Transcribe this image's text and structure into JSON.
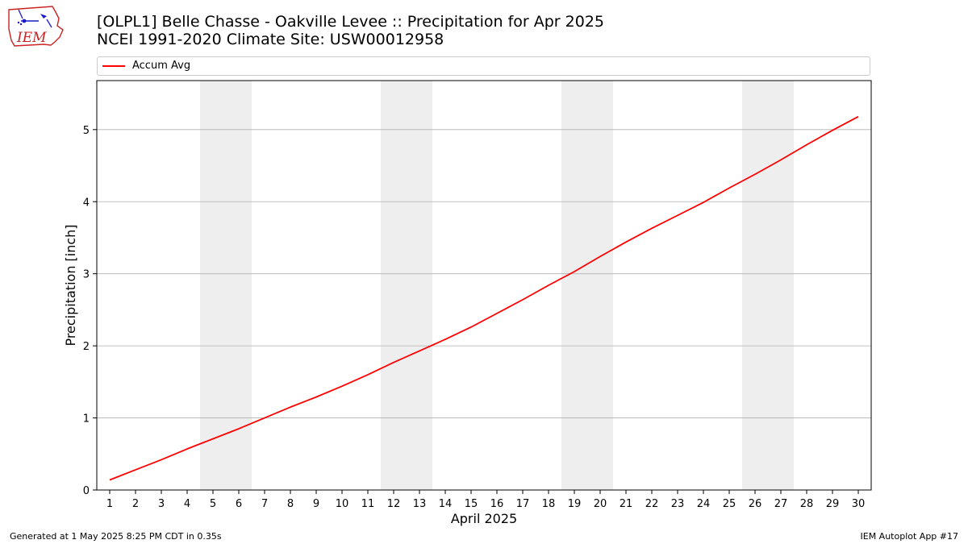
{
  "header": {
    "logo_text": "IEM",
    "title_line1": "[OLPL1] Belle Chasse - Oakville Levee :: Precipitation for Apr 2025",
    "title_line2": "NCEI 1991-2020 Climate Site: USW00012958"
  },
  "footer": {
    "left": "Generated at 1 May 2025 8:25 PM CDT in 0.35s",
    "right": "IEM Autoplot App #17"
  },
  "colors": {
    "series": "#ff0000",
    "weekend_band": "#eeeeee",
    "grid": "#b0b0b0",
    "logo": "#cc2222"
  },
  "chart_data": {
    "type": "line",
    "title": "",
    "xlabel": "April 2025",
    "ylabel": "Precipitation [inch]",
    "xlim": [
      0.5,
      30.5
    ],
    "ylim": [
      0,
      5.68
    ],
    "yticks": [
      0,
      1,
      2,
      3,
      4,
      5
    ],
    "x": [
      1,
      2,
      3,
      4,
      5,
      6,
      7,
      8,
      9,
      10,
      11,
      12,
      13,
      14,
      15,
      16,
      17,
      18,
      19,
      20,
      21,
      22,
      23,
      24,
      25,
      26,
      27,
      28,
      29,
      30
    ],
    "x_tick_labels": [
      "1",
      "2",
      "3",
      "4",
      "5",
      "6",
      "7",
      "8",
      "9",
      "10",
      "11",
      "12",
      "13",
      "14",
      "15",
      "16",
      "17",
      "18",
      "19",
      "20",
      "21",
      "22",
      "23",
      "24",
      "25",
      "26",
      "27",
      "28",
      "29",
      "30"
    ],
    "series": [
      {
        "name": "Accum Avg",
        "color": "#ff0000",
        "values": [
          0.14,
          0.28,
          0.42,
          0.57,
          0.71,
          0.85,
          1.0,
          1.15,
          1.29,
          1.44,
          1.6,
          1.77,
          1.93,
          2.09,
          2.26,
          2.45,
          2.64,
          2.84,
          3.03,
          3.24,
          3.44,
          3.63,
          3.81,
          3.99,
          4.19,
          4.38,
          4.58,
          4.79,
          4.99,
          5.18
        ]
      }
    ],
    "shaded_days": [
      5,
      6,
      12,
      13,
      19,
      20,
      26,
      27
    ],
    "grid": "horizontal",
    "legend_position": "top"
  }
}
